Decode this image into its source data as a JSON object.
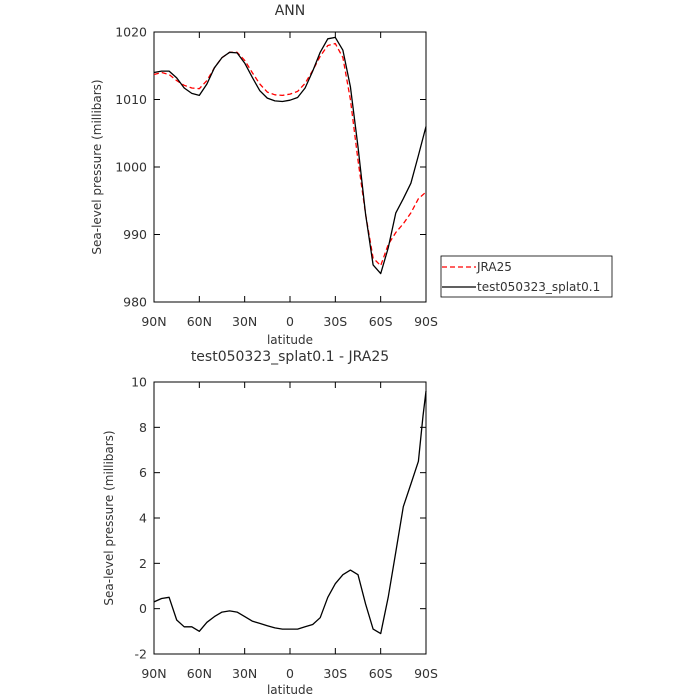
{
  "chart_data": [
    {
      "type": "line",
      "title": "ANN",
      "xlabel": "latitude",
      "ylabel": "Sea-level pressure (millibars)",
      "xlim": [
        90,
        -90
      ],
      "ylim": [
        980,
        1020
      ],
      "x_tick_values": [
        90,
        60,
        30,
        0,
        -30,
        -60,
        -90
      ],
      "x_tick_labels": [
        "90N",
        "60N",
        "30N",
        "0",
        "30S",
        "60S",
        "90S"
      ],
      "y_tick_values": [
        980,
        990,
        1000,
        1010,
        1020
      ],
      "y_tick_labels": [
        "980",
        "990",
        "1000",
        "1010",
        "1020"
      ],
      "legend_placement": "right",
      "series": [
        {
          "name": "JRA25",
          "color": "#ff0000",
          "style": "dashed",
          "x": [
            90,
            85,
            80,
            75,
            70,
            65,
            60,
            55,
            50,
            45,
            40,
            35,
            30,
            25,
            20,
            15,
            10,
            5,
            0,
            -5,
            -10,
            -15,
            -20,
            -25,
            -30,
            -35,
            -40,
            -45,
            -50,
            -55,
            -60,
            -65,
            -70,
            -75,
            -80,
            -85,
            -90
          ],
          "values": [
            1013.7,
            1014,
            1013.7,
            1012.8,
            1012.1,
            1011.7,
            1011.6,
            1012.8,
            1014.7,
            1016.2,
            1017,
            1017,
            1015.8,
            1014,
            1012.3,
            1011.1,
            1010.7,
            1010.6,
            1010.8,
            1011.2,
            1012.4,
            1014.3,
            1016.4,
            1018,
            1018.3,
            1016.2,
            1010,
            1001,
            993,
            986.5,
            985.4,
            988.5,
            990.3,
            991.6,
            993.2,
            995.3,
            996.3
          ]
        },
        {
          "name": "test050323_splat0.1",
          "color": "#000000",
          "style": "solid",
          "x": [
            90,
            85,
            80,
            75,
            70,
            65,
            60,
            55,
            50,
            45,
            40,
            35,
            30,
            25,
            20,
            15,
            10,
            5,
            0,
            -5,
            -10,
            -15,
            -20,
            -25,
            -30,
            -35,
            -40,
            -45,
            -50,
            -55,
            -60,
            -65,
            -70,
            -75,
            -80,
            -85,
            -90
          ],
          "values": [
            1014,
            1014.2,
            1014.2,
            1013.2,
            1011.7,
            1010.9,
            1010.6,
            1012.3,
            1014.7,
            1016.2,
            1017,
            1016.9,
            1015.4,
            1013.3,
            1011.3,
            1010.2,
            1009.8,
            1009.7,
            1009.9,
            1010.3,
            1011.7,
            1014.2,
            1017,
            1019,
            1019.2,
            1017.3,
            1011.9,
            1003,
            993,
            985.5,
            984.2,
            988,
            993.2,
            995.3,
            997.6,
            1001.7,
            1006
          ]
        }
      ]
    },
    {
      "type": "line",
      "title": "test050323_splat0.1 - JRA25",
      "xlabel": "latitude",
      "ylabel": "Sea-level pressure (millibars)",
      "xlim": [
        90,
        -90
      ],
      "ylim": [
        -2,
        10
      ],
      "x_tick_values": [
        90,
        60,
        30,
        0,
        -30,
        -60,
        -90
      ],
      "x_tick_labels": [
        "90N",
        "60N",
        "30N",
        "0",
        "30S",
        "60S",
        "90S"
      ],
      "y_tick_values": [
        -2,
        0,
        2,
        4,
        6,
        8,
        10
      ],
      "y_tick_labels": [
        "-2",
        "0",
        "2",
        "4",
        "6",
        "8",
        "10"
      ],
      "series": [
        {
          "color": "#000000",
          "style": "solid",
          "x": [
            90,
            85,
            80,
            75,
            70,
            65,
            60,
            55,
            50,
            45,
            40,
            35,
            30,
            25,
            20,
            15,
            10,
            5,
            0,
            -5,
            -10,
            -15,
            -20,
            -25,
            -30,
            -35,
            -40,
            -45,
            -50,
            -55,
            -60,
            -65,
            -70,
            -75,
            -80,
            -85,
            -88,
            -90
          ],
          "values": [
            0.3,
            0.45,
            0.5,
            -0.5,
            -0.8,
            -0.8,
            -1.0,
            -0.6,
            -0.35,
            -0.15,
            -0.1,
            -0.15,
            -0.35,
            -0.55,
            -0.65,
            -0.75,
            -0.85,
            -0.9,
            -0.9,
            -0.9,
            -0.8,
            -0.7,
            -0.4,
            0.5,
            1.1,
            1.5,
            1.7,
            1.5,
            0.2,
            -0.9,
            -1.1,
            0.5,
            2.5,
            4.5,
            5.5,
            6.5,
            8.5,
            9.6
          ]
        }
      ]
    }
  ]
}
